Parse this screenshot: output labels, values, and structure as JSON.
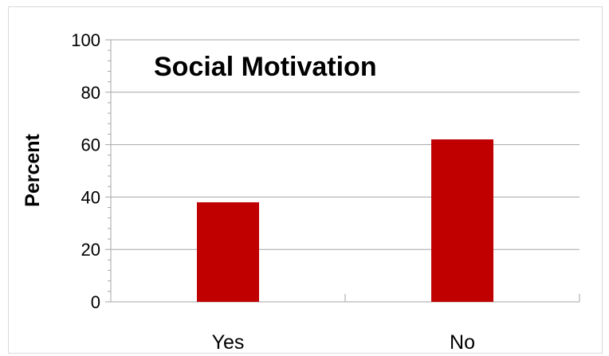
{
  "chart_data": {
    "type": "bar",
    "title": "Social Motivation",
    "xlabel": "",
    "ylabel": "Percent",
    "categories": [
      "Yes",
      "No"
    ],
    "values": [
      38,
      62
    ],
    "ylim": [
      0,
      100
    ],
    "yticks": [
      0,
      20,
      40,
      60,
      80,
      100
    ],
    "grid": true,
    "bar_color": "#c00000",
    "grid_color": "#a6a6a6"
  }
}
